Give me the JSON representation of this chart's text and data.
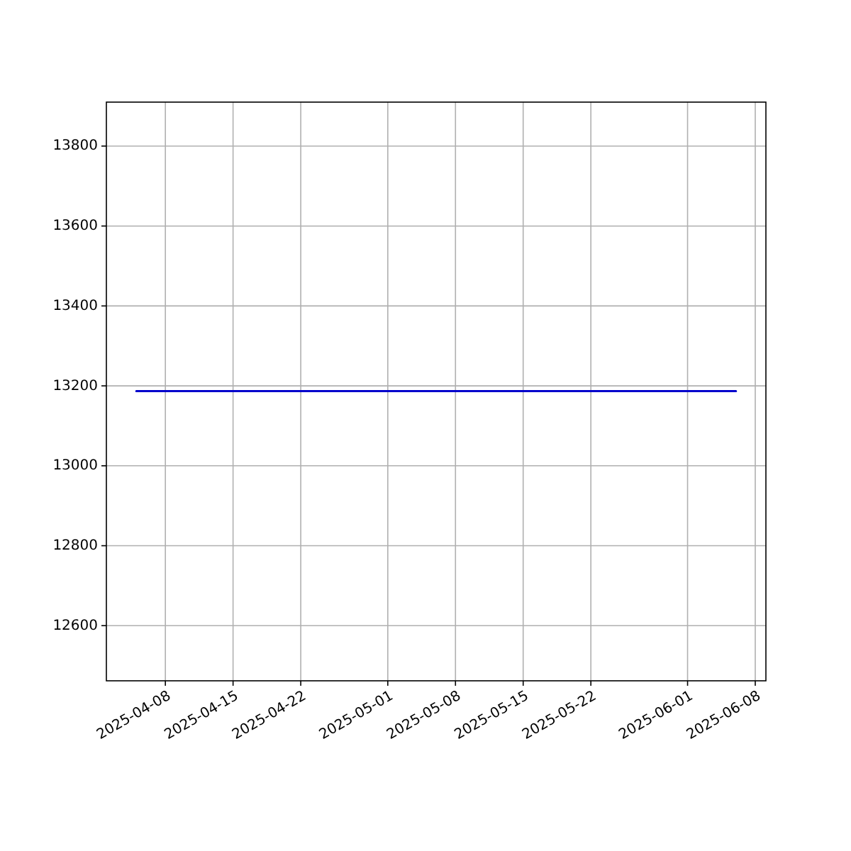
{
  "chart_data": {
    "type": "line",
    "x": [
      "2025-04-05",
      "2025-06-06"
    ],
    "series": [
      {
        "color": "#0000cc",
        "values": [
          13187,
          13187
        ]
      }
    ],
    "xlim": [
      "2025-04-01T21:36",
      "2025-06-09T02:24"
    ],
    "xticks": [
      "2025-04-08",
      "2025-04-15",
      "2025-04-22",
      "2025-05-01",
      "2025-05-08",
      "2025-05-15",
      "2025-05-22",
      "2025-06-01",
      "2025-06-08"
    ],
    "ylim": [
      12462,
      13910
    ],
    "yticks": [
      12600,
      12800,
      13000,
      13200,
      13400,
      13600,
      13800
    ],
    "grid": true
  }
}
